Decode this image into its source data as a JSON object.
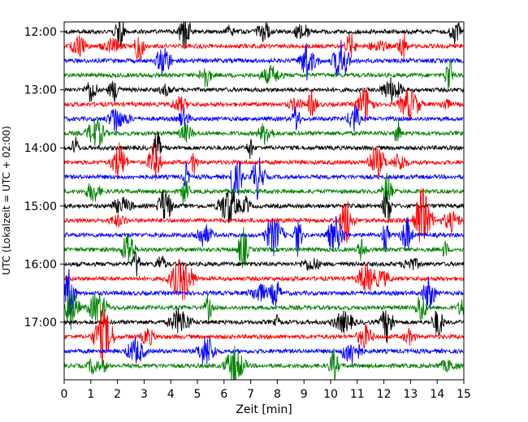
{
  "chart_data": {
    "type": "line",
    "subtype": "helicorder",
    "xlabel": "Zeit  [min]",
    "ylabel": "UTC (Lokalzeit = UTC + 02:00)",
    "x_ticks": [
      "0",
      "1",
      "2",
      "3",
      "4",
      "5",
      "6",
      "7",
      "8",
      "9",
      "10",
      "11",
      "12",
      "13",
      "14",
      "15"
    ],
    "xlim": [
      0,
      15
    ],
    "y_ticks": [
      {
        "label": "12:00",
        "row": 0
      },
      {
        "label": "13:00",
        "row": 4
      },
      {
        "label": "14:00",
        "row": 8
      },
      {
        "label": "15:00",
        "row": 12
      },
      {
        "label": "16:00",
        "row": 16
      },
      {
        "label": "17:00",
        "row": 20
      }
    ],
    "rows": 24,
    "minutes_per_row": 15,
    "start_time": "12:00",
    "end_time": "18:00",
    "trace_colors": [
      "#000000",
      "#ff0000",
      "#0000ff",
      "#008000"
    ],
    "grid": false,
    "legend": "none"
  }
}
